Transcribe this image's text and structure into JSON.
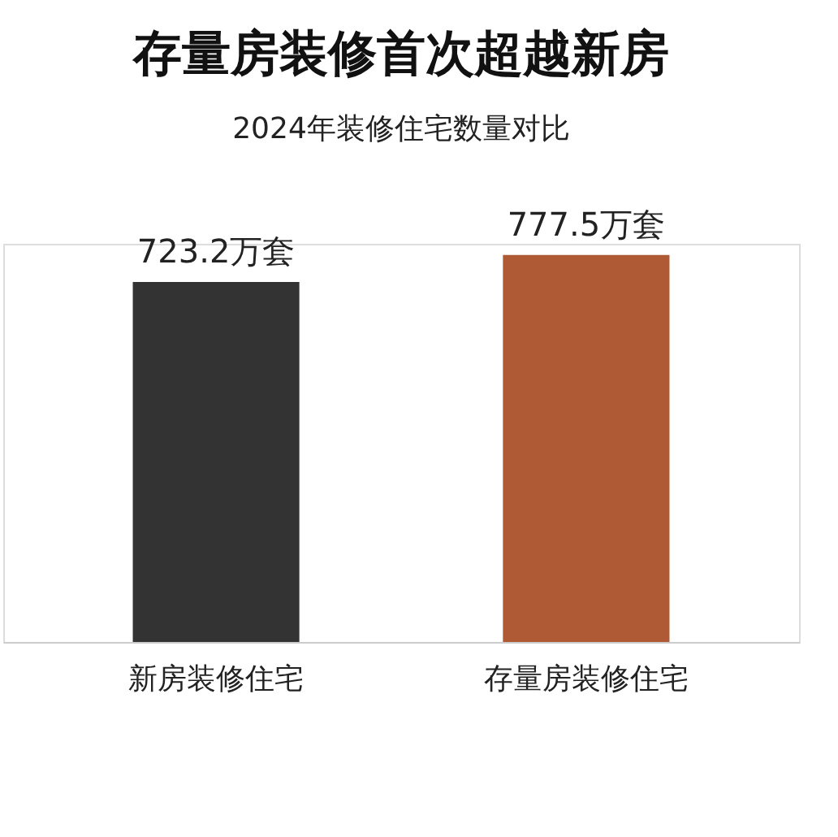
{
  "chart_data": {
    "type": "bar",
    "title": "存量房装修首次超越新房",
    "subtitle": "2024年装修住宅数量对比",
    "categories": [
      "新房装修住宅",
      "存量房装修住宅"
    ],
    "values": [
      723.2,
      777.5
    ],
    "colors": [
      "#333333",
      "#b05a35"
    ],
    "value_labels": [
      "723.2万套",
      "777.5万套"
    ],
    "tick_labels": "x",
    "grid": false
  }
}
